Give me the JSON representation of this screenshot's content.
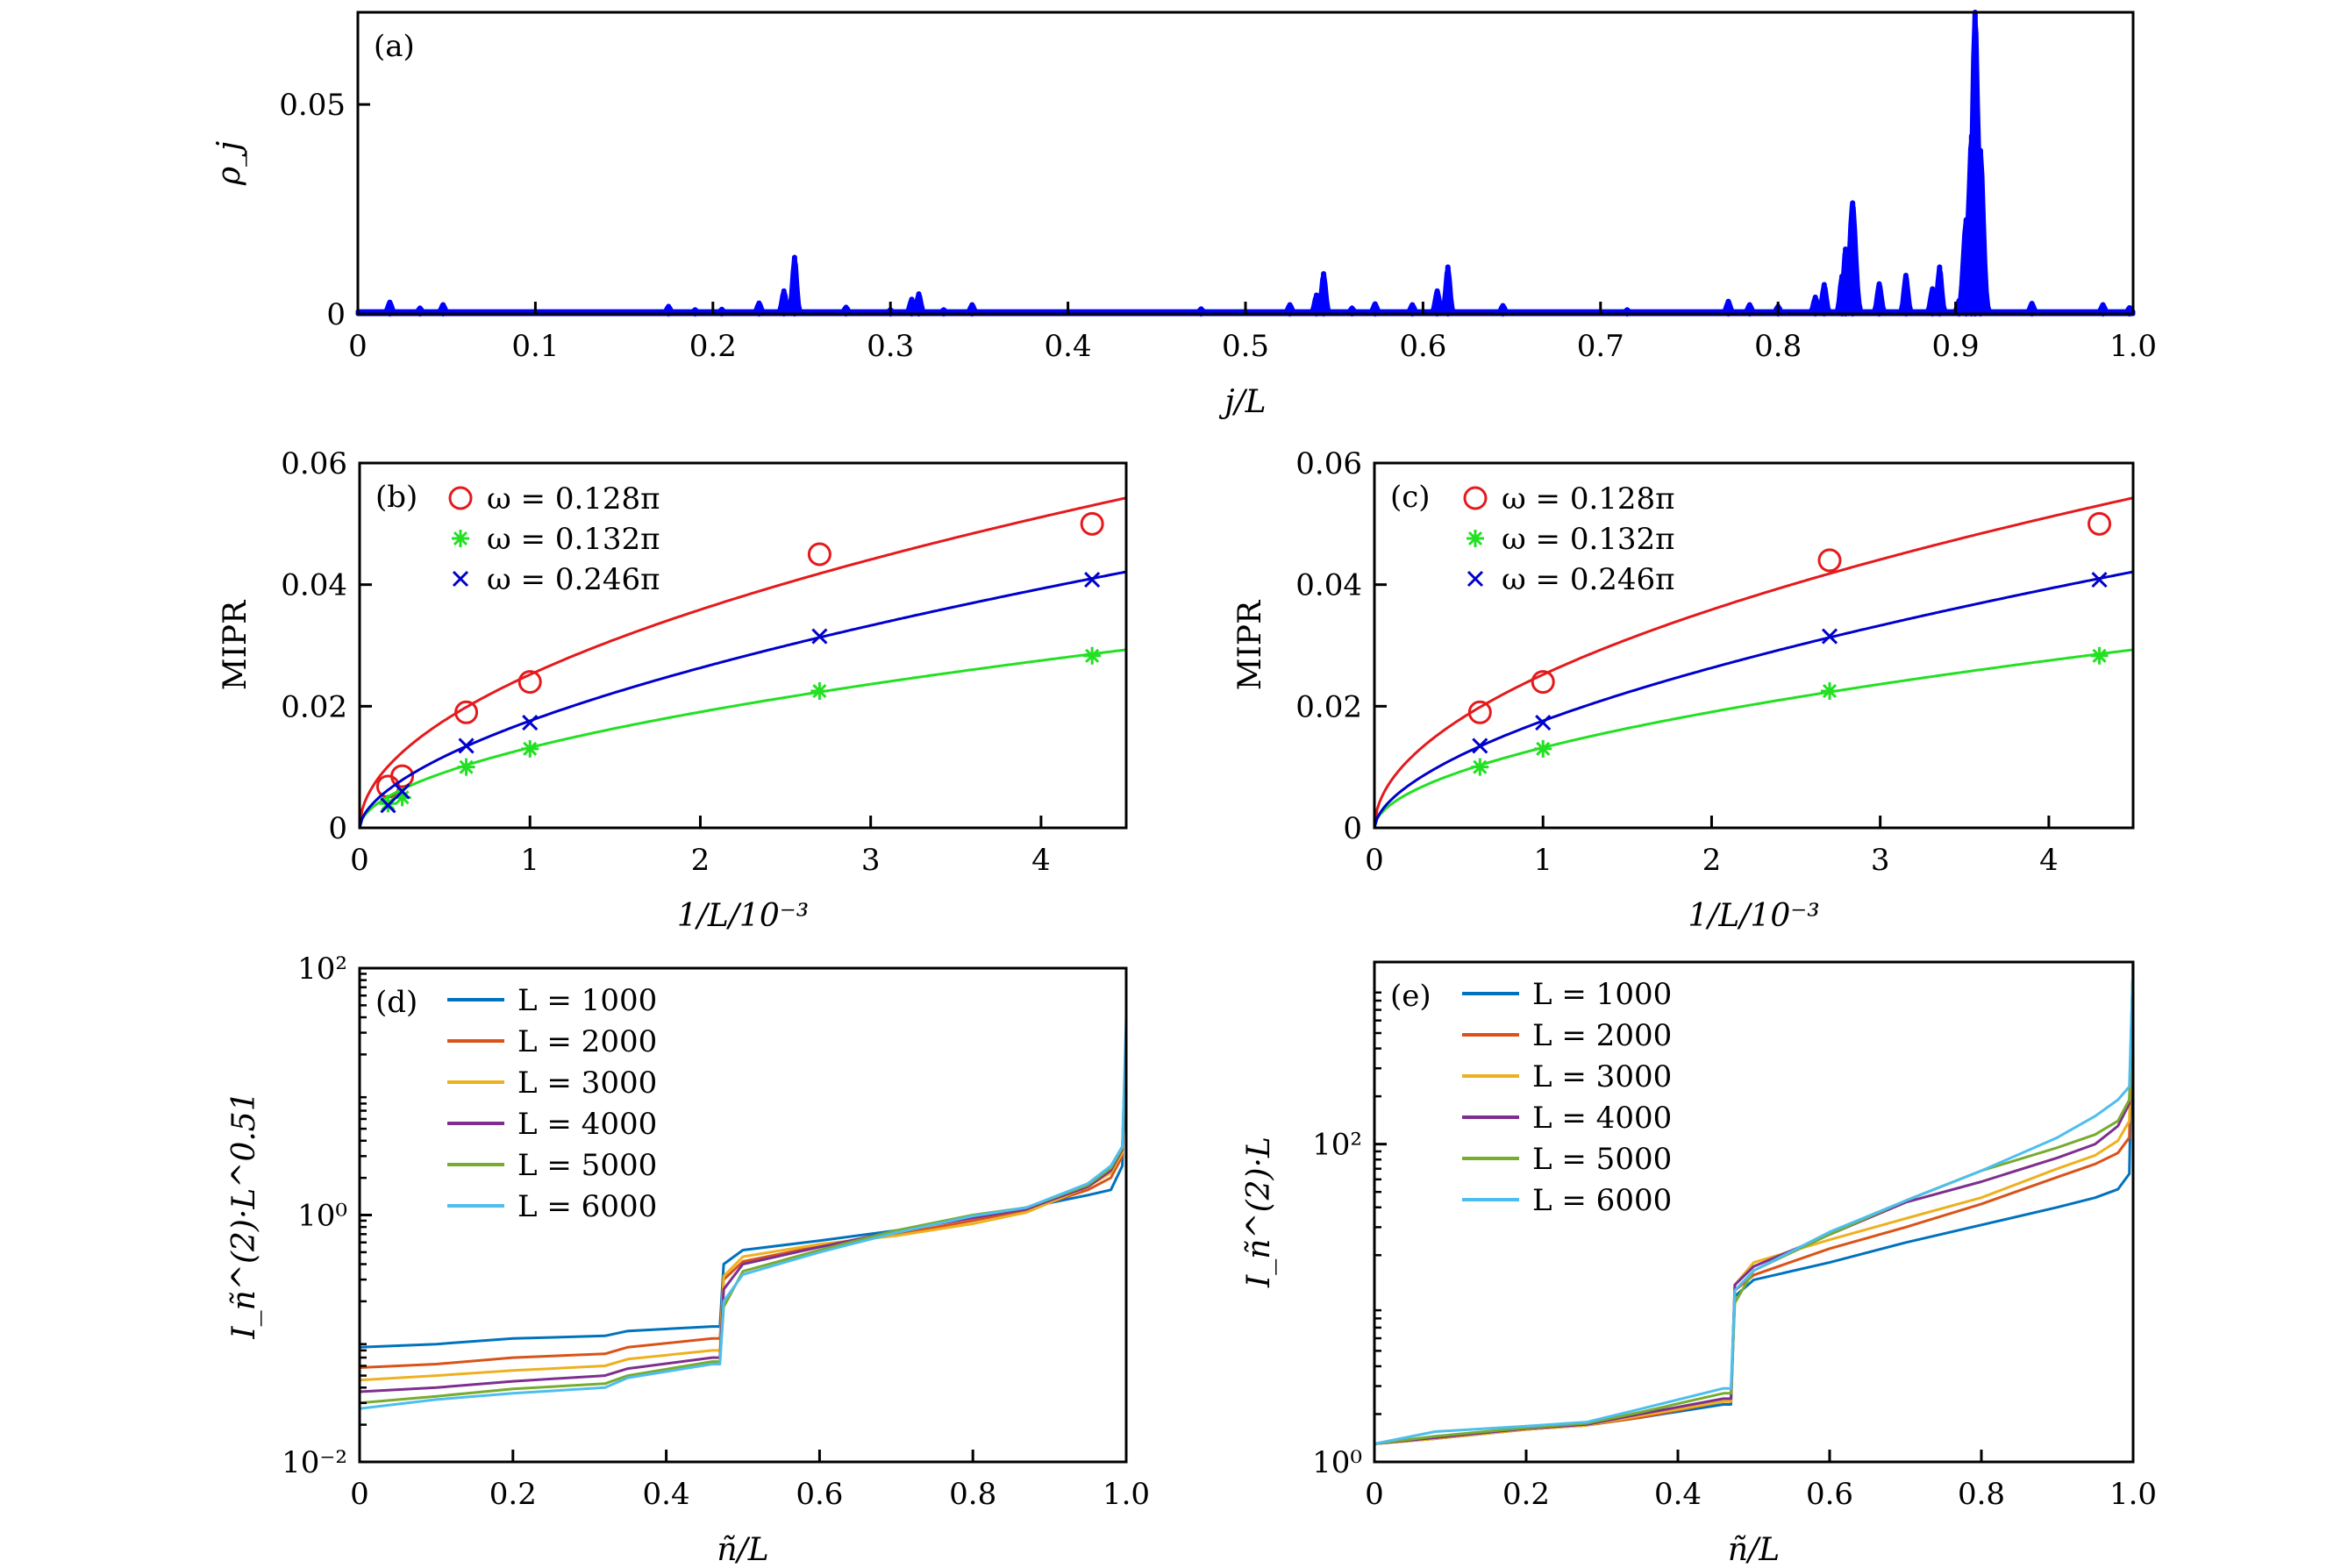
{
  "chart_data": [
    {
      "panel": "a",
      "type": "area",
      "title": "",
      "panel_label": "(a)",
      "xlabel": "j/L",
      "ylabel": "ρ_j",
      "xlim": [
        0,
        1.0
      ],
      "ylim": [
        0,
        0.072
      ],
      "xticks": [
        0,
        0.1,
        0.2,
        0.3,
        0.4,
        0.5,
        0.6,
        0.7,
        0.8,
        0.9,
        1.0
      ],
      "xtick_labels": [
        "0",
        "0.1",
        "0.2",
        "0.3",
        "0.4",
        "0.5",
        "0.6",
        "0.7",
        "0.8",
        "0.9",
        "1.0"
      ],
      "yticks": [
        0,
        0.05
      ],
      "ytick_labels": [
        "0",
        "0.05"
      ],
      "color": "#0000ff",
      "baseline": 0.0006,
      "peaks": [
        {
          "x": 0.018,
          "y": 0.0028
        },
        {
          "x": 0.035,
          "y": 0.0014
        },
        {
          "x": 0.048,
          "y": 0.0022
        },
        {
          "x": 0.175,
          "y": 0.0018
        },
        {
          "x": 0.19,
          "y": 0.001
        },
        {
          "x": 0.205,
          "y": 0.0011
        },
        {
          "x": 0.226,
          "y": 0.0026
        },
        {
          "x": 0.24,
          "y": 0.0055
        },
        {
          "x": 0.246,
          "y": 0.0135
        },
        {
          "x": 0.275,
          "y": 0.0016
        },
        {
          "x": 0.3,
          "y": 0.001
        },
        {
          "x": 0.312,
          "y": 0.0035
        },
        {
          "x": 0.316,
          "y": 0.0048
        },
        {
          "x": 0.33,
          "y": 0.001
        },
        {
          "x": 0.346,
          "y": 0.0022
        },
        {
          "x": 0.475,
          "y": 0.0012
        },
        {
          "x": 0.525,
          "y": 0.0022
        },
        {
          "x": 0.54,
          "y": 0.0045
        },
        {
          "x": 0.544,
          "y": 0.0096
        },
        {
          "x": 0.56,
          "y": 0.0014
        },
        {
          "x": 0.573,
          "y": 0.0024
        },
        {
          "x": 0.594,
          "y": 0.0022
        },
        {
          "x": 0.608,
          "y": 0.0055
        },
        {
          "x": 0.614,
          "y": 0.0112
        },
        {
          "x": 0.645,
          "y": 0.002
        },
        {
          "x": 0.715,
          "y": 0.001
        },
        {
          "x": 0.772,
          "y": 0.003
        },
        {
          "x": 0.784,
          "y": 0.0022
        },
        {
          "x": 0.8,
          "y": 0.0018
        },
        {
          "x": 0.821,
          "y": 0.004
        },
        {
          "x": 0.826,
          "y": 0.007
        },
        {
          "x": 0.836,
          "y": 0.009
        },
        {
          "x": 0.838,
          "y": 0.0155
        },
        {
          "x": 0.842,
          "y": 0.0265
        },
        {
          "x": 0.857,
          "y": 0.0072
        },
        {
          "x": 0.872,
          "y": 0.0092
        },
        {
          "x": 0.887,
          "y": 0.006
        },
        {
          "x": 0.891,
          "y": 0.0112
        },
        {
          "x": 0.902,
          "y": 0.0032
        },
        {
          "x": 0.906,
          "y": 0.0225
        },
        {
          "x": 0.909,
          "y": 0.0425
        },
        {
          "x": 0.911,
          "y": 0.072
        },
        {
          "x": 0.914,
          "y": 0.039
        },
        {
          "x": 0.943,
          "y": 0.0025
        },
        {
          "x": 0.983,
          "y": 0.0022
        },
        {
          "x": 0.998,
          "y": 0.0015
        }
      ]
    },
    {
      "panel": "b",
      "type": "scatter",
      "panel_label": "(b)",
      "xlabel": "1/L/10⁻³",
      "ylabel": "MIPR",
      "xlim": [
        0,
        4.5
      ],
      "ylim": [
        0,
        0.06
      ],
      "xticks": [
        0,
        1,
        2,
        3,
        4
      ],
      "xtick_labels": [
        "0",
        "1",
        "2",
        "3",
        "4"
      ],
      "yticks": [
        0,
        0.02,
        0.04,
        0.06
      ],
      "ytick_labels": [
        "0",
        "0.02",
        "0.04",
        "0.06"
      ],
      "legend_position": "top-left",
      "series": [
        {
          "name": "ω = 0.128π",
          "marker": "circle",
          "color": "#e41a1c",
          "x": [
            0.167,
            0.25,
            0.626,
            1.0,
            2.7,
            4.3
          ],
          "y": [
            0.0068,
            0.0085,
            0.019,
            0.024,
            0.045,
            0.05
          ],
          "fit": {
            "a": 0.0252,
            "alpha": 0.51
          }
        },
        {
          "name": "ω = 0.132π",
          "marker": "star",
          "color": "#22e022",
          "x": [
            0.167,
            0.25,
            0.626,
            1.0,
            2.7,
            4.3
          ],
          "y": [
            0.004,
            0.005,
            0.01,
            0.013,
            0.0225,
            0.0283
          ],
          "fit": {
            "a": 0.0132,
            "alpha": 0.53
          }
        },
        {
          "name": "ω = 0.246π",
          "marker": "x",
          "color": "#0000cc",
          "x": [
            0.167,
            0.25,
            0.626,
            1.0,
            2.7,
            4.3
          ],
          "y": [
            0.0037,
            0.006,
            0.0135,
            0.0173,
            0.0315,
            0.0408
          ],
          "fit": {
            "a": 0.0176,
            "alpha": 0.58
          }
        }
      ]
    },
    {
      "panel": "c",
      "type": "scatter",
      "panel_label": "(c)",
      "xlabel": "1/L/10⁻³",
      "ylabel": "MIPR",
      "xlim": [
        0,
        4.5
      ],
      "ylim": [
        0,
        0.06
      ],
      "xticks": [
        0,
        1,
        2,
        3,
        4
      ],
      "xtick_labels": [
        "0",
        "1",
        "2",
        "3",
        "4"
      ],
      "yticks": [
        0,
        0.02,
        0.04,
        0.06
      ],
      "ytick_labels": [
        "0",
        "0.02",
        "0.04",
        "0.06"
      ],
      "legend_position": "top-left",
      "series": [
        {
          "name": "ω = 0.128π",
          "marker": "circle",
          "color": "#e41a1c",
          "x": [
            0.626,
            1.0,
            2.7,
            4.3
          ],
          "y": [
            0.019,
            0.024,
            0.044,
            0.05
          ],
          "fit": {
            "a": 0.0252,
            "alpha": 0.51
          }
        },
        {
          "name": "ω = 0.132π",
          "marker": "star",
          "color": "#22e022",
          "x": [
            0.626,
            1.0,
            2.7,
            4.3
          ],
          "y": [
            0.01,
            0.013,
            0.0225,
            0.0283
          ],
          "fit": {
            "a": 0.0132,
            "alpha": 0.53
          }
        },
        {
          "name": "ω = 0.246π",
          "marker": "x",
          "color": "#0000cc",
          "x": [
            0.626,
            1.0,
            2.7,
            4.3
          ],
          "y": [
            0.0135,
            0.0173,
            0.0315,
            0.0408
          ],
          "fit": {
            "a": 0.0176,
            "alpha": 0.58
          }
        }
      ]
    },
    {
      "panel": "d",
      "type": "line",
      "panel_label": "(d)",
      "xlabel": "ñ/L",
      "ylabel": "I_ñ^(2)·L^0.51",
      "yscale": "log",
      "xlim": [
        0,
        1.0
      ],
      "ylim": [
        0.01,
        100
      ],
      "xticks": [
        0,
        0.2,
        0.4,
        0.6,
        0.8,
        1.0
      ],
      "xtick_labels": [
        "0",
        "0.2",
        "0.4",
        "0.6",
        "0.8",
        "1.0"
      ],
      "yticks": [
        0.01,
        1,
        100
      ],
      "ytick_labels": [
        "10⁻²",
        "10⁰",
        "10²"
      ],
      "legend_position": "top-left",
      "x": [
        0,
        0.1,
        0.2,
        0.32,
        0.35,
        0.46,
        0.47,
        0.475,
        0.5,
        0.6,
        0.7,
        0.8,
        0.87,
        0.95,
        0.98,
        0.995,
        1.0
      ],
      "series": [
        {
          "name": "L = 1000",
          "color": "#0072bd",
          "y": [
            0.085,
            0.09,
            0.1,
            0.105,
            0.115,
            0.125,
            0.125,
            0.4,
            0.52,
            0.62,
            0.75,
            0.95,
            1.15,
            1.45,
            1.6,
            2.5,
            30
          ]
        },
        {
          "name": "L = 2000",
          "color": "#d95319",
          "y": [
            0.058,
            0.062,
            0.07,
            0.075,
            0.085,
            0.1,
            0.1,
            0.3,
            0.42,
            0.56,
            0.7,
            0.9,
            1.1,
            1.6,
            2.0,
            3.0,
            30
          ]
        },
        {
          "name": "L = 3000",
          "color": "#edb120",
          "y": [
            0.046,
            0.05,
            0.055,
            0.06,
            0.068,
            0.08,
            0.08,
            0.32,
            0.46,
            0.58,
            0.68,
            0.85,
            1.05,
            1.7,
            2.2,
            3.2,
            30
          ]
        },
        {
          "name": "L = 4000",
          "color": "#7e2f8e",
          "y": [
            0.037,
            0.04,
            0.045,
            0.05,
            0.057,
            0.07,
            0.07,
            0.25,
            0.4,
            0.55,
            0.74,
            0.95,
            1.12,
            1.7,
            2.3,
            3.4,
            30
          ]
        },
        {
          "name": "L = 5000",
          "color": "#77ac30",
          "y": [
            0.03,
            0.034,
            0.039,
            0.043,
            0.05,
            0.065,
            0.065,
            0.18,
            0.35,
            0.52,
            0.75,
            1.0,
            1.15,
            1.75,
            2.4,
            3.5,
            30
          ]
        },
        {
          "name": "L = 6000",
          "color": "#4dbeee",
          "y": [
            0.027,
            0.032,
            0.036,
            0.04,
            0.048,
            0.062,
            0.062,
            0.2,
            0.33,
            0.5,
            0.72,
            0.98,
            1.15,
            1.8,
            2.5,
            3.6,
            40
          ]
        }
      ]
    },
    {
      "panel": "e",
      "type": "line",
      "panel_label": "(e)",
      "xlabel": "ñ/L",
      "ylabel": "I_ñ^(2)·L",
      "yscale": "log",
      "xlim": [
        0,
        1.0
      ],
      "ylim": [
        1,
        1400
      ],
      "xticks": [
        0,
        0.2,
        0.4,
        0.6,
        0.8,
        1.0
      ],
      "xtick_labels": [
        "0",
        "0.2",
        "0.4",
        "0.6",
        "0.8",
        "1.0"
      ],
      "yticks": [
        1,
        100
      ],
      "ytick_labels": [
        "10⁰",
        "10²"
      ],
      "legend_position": "top-left",
      "x": [
        0,
        0.08,
        0.2,
        0.28,
        0.35,
        0.46,
        0.47,
        0.475,
        0.5,
        0.6,
        0.7,
        0.8,
        0.9,
        0.95,
        0.98,
        0.995,
        1.0
      ],
      "series": [
        {
          "name": "L = 1000",
          "color": "#0072bd",
          "y": [
            1.3,
            1.4,
            1.6,
            1.7,
            1.9,
            2.3,
            2.3,
            11,
            14,
            18,
            24,
            31,
            40,
            46,
            52,
            65,
            1400
          ]
        },
        {
          "name": "L = 2000",
          "color": "#d95319",
          "y": [
            1.3,
            1.4,
            1.6,
            1.7,
            1.9,
            2.4,
            2.4,
            12,
            15,
            22,
            30,
            42,
            62,
            75,
            88,
            110,
            1400
          ]
        },
        {
          "name": "L = 3000",
          "color": "#edb120",
          "y": [
            1.3,
            1.4,
            1.6,
            1.7,
            1.95,
            2.4,
            2.4,
            13,
            18,
            25,
            34,
            46,
            70,
            85,
            105,
            140,
            1400
          ]
        },
        {
          "name": "L = 4000",
          "color": "#7e2f8e",
          "y": [
            1.3,
            1.42,
            1.62,
            1.72,
            2.0,
            2.5,
            2.5,
            13,
            17,
            27,
            43,
            58,
            82,
            100,
            130,
            180,
            1400
          ]
        },
        {
          "name": "L = 5000",
          "color": "#77ac30",
          "y": [
            1.3,
            1.45,
            1.64,
            1.75,
            2.05,
            2.7,
            2.7,
            10,
            16,
            27,
            44,
            68,
            95,
            115,
            140,
            190,
            1400
          ]
        },
        {
          "name": "L = 6000",
          "color": "#4dbeee",
          "y": [
            1.3,
            1.55,
            1.68,
            1.78,
            2.15,
            2.9,
            2.9,
            12,
            16,
            28,
            44,
            68,
            110,
            150,
            190,
            230,
            1400
          ]
        }
      ]
    }
  ]
}
